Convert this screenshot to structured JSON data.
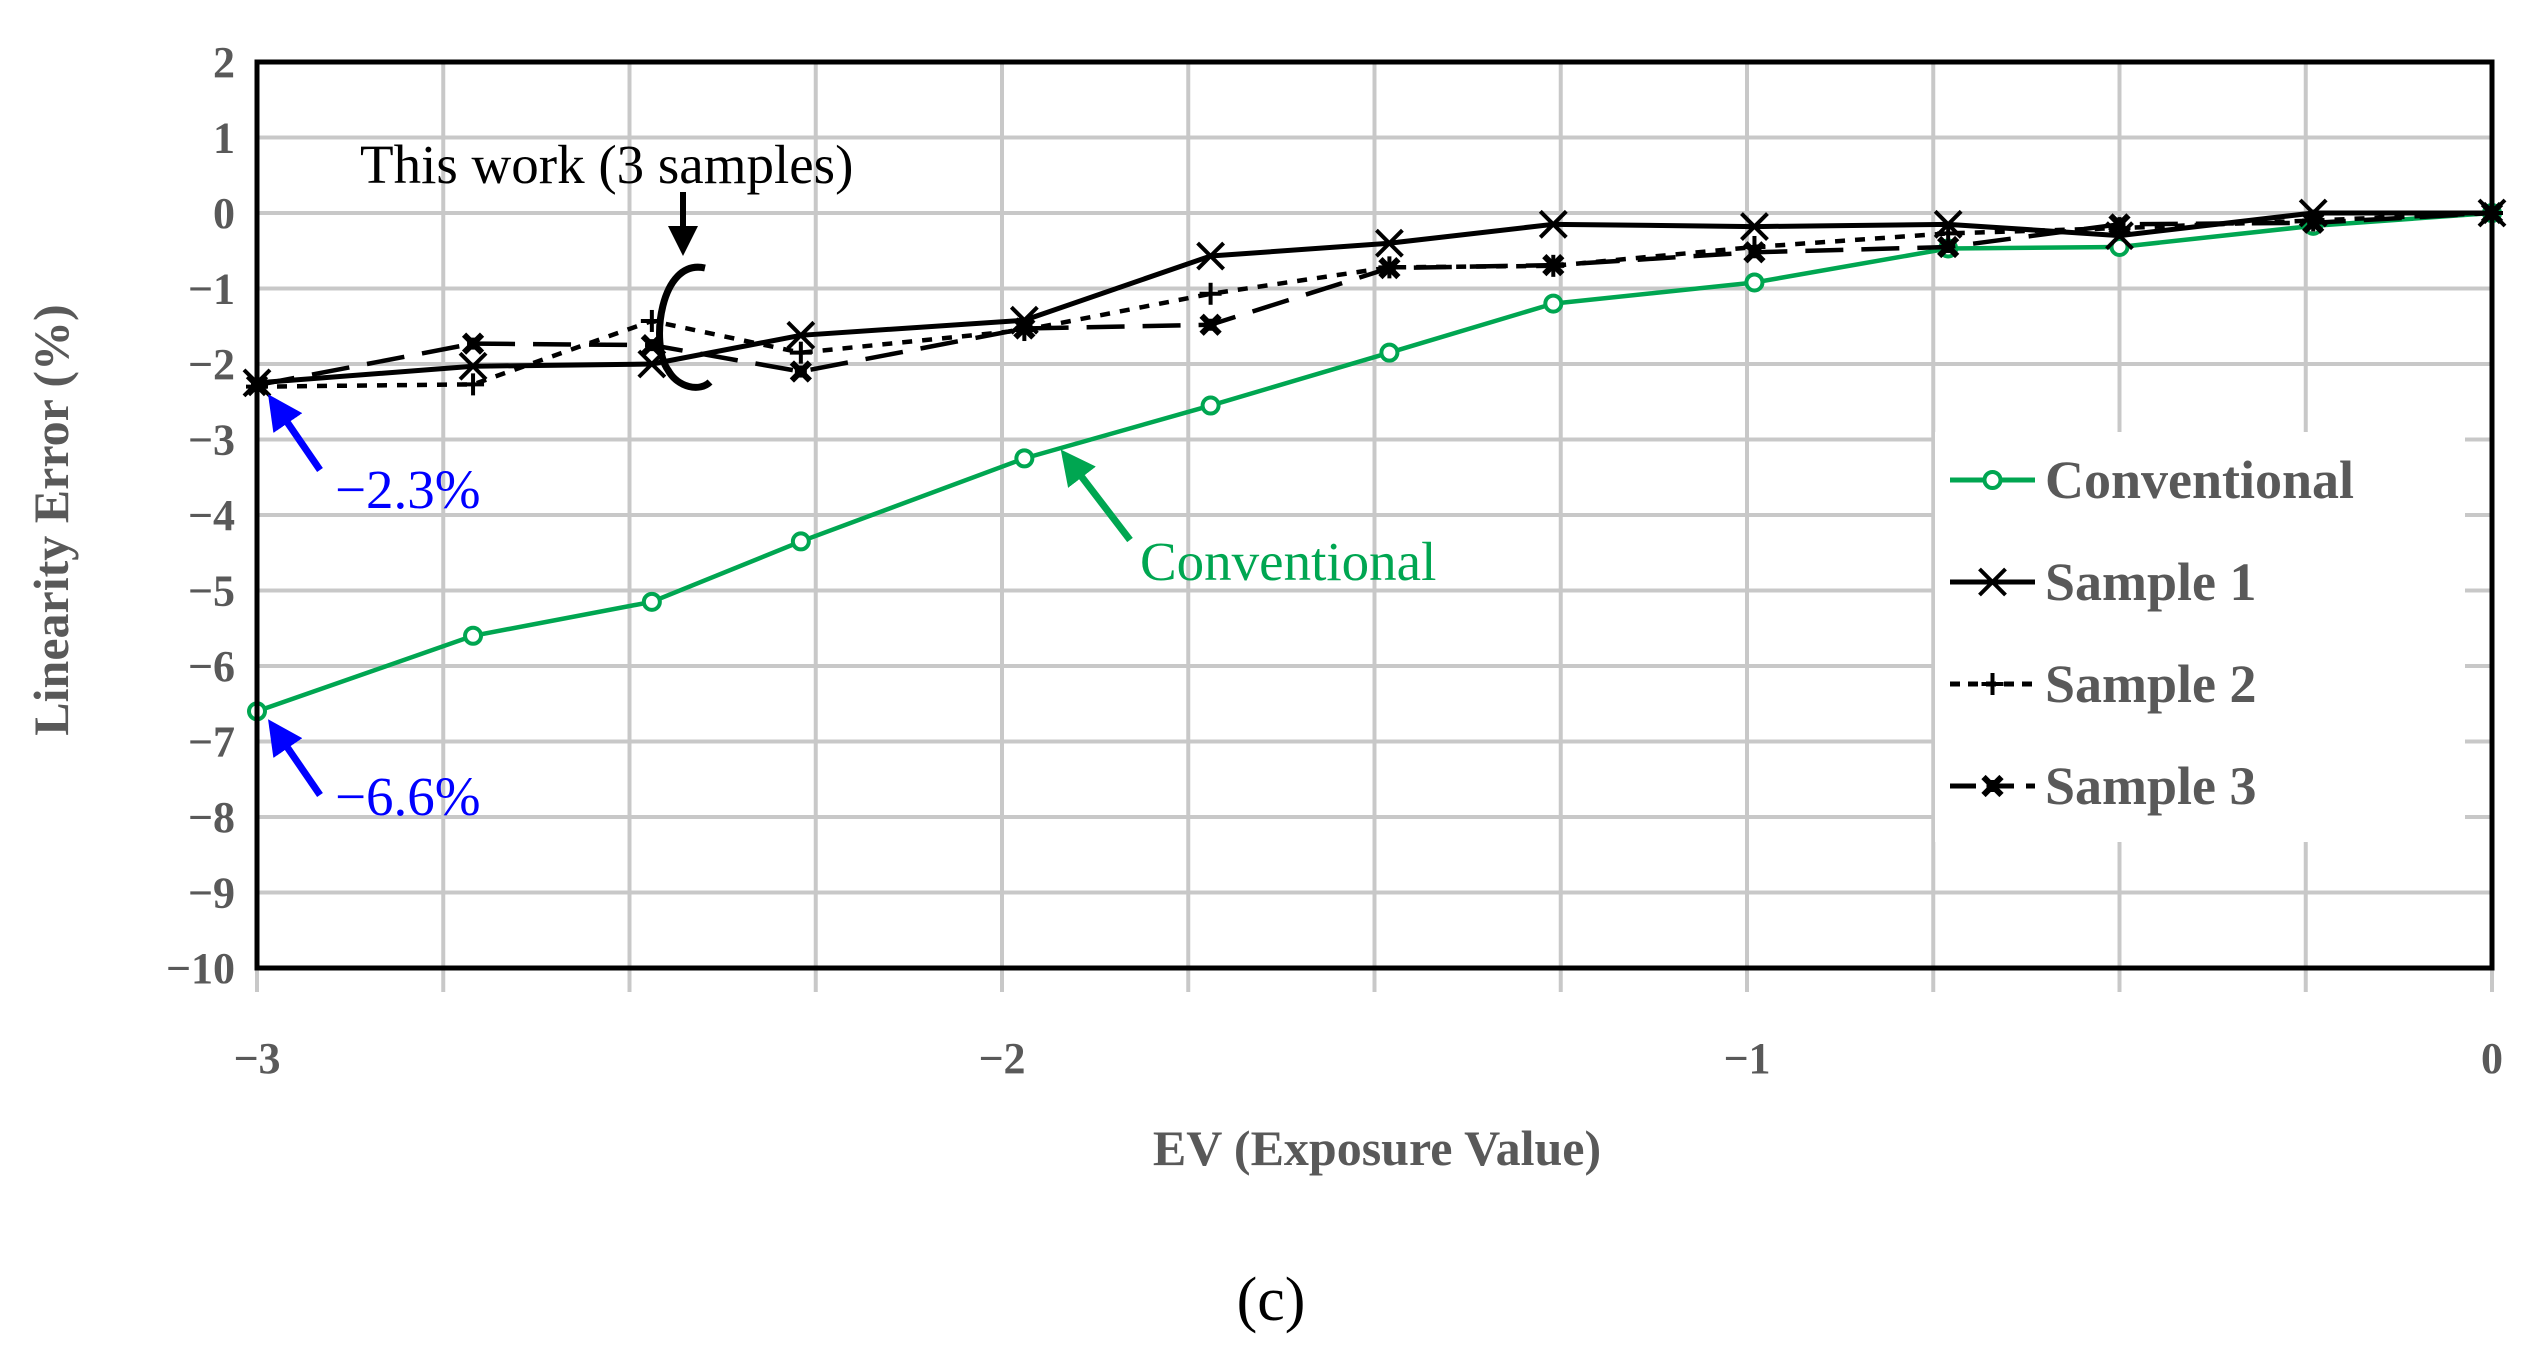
{
  "colors": {
    "conventional": "#00a651",
    "sample": "#000000",
    "annotation_blue": "#0000ff",
    "grid": "#c8c8c8",
    "tick_text": "#595959"
  },
  "chart_data": {
    "type": "line",
    "title": "",
    "panel_label": "(c)",
    "xlabel": "EV (Exposure Value)",
    "ylabel": "Linearity Error (%)",
    "xlim": [
      -3,
      0
    ],
    "ylim": [
      -10,
      2
    ],
    "x_grid_step": 0.25,
    "y_grid_step": 1,
    "x_ticks": [
      {
        "value": -3,
        "label": "−3"
      },
      {
        "value": -2,
        "label": "−2"
      },
      {
        "value": -1,
        "label": "−1"
      },
      {
        "value": 0,
        "label": "0"
      }
    ],
    "y_ticks": [
      {
        "value": 2,
        "label": "2"
      },
      {
        "value": 1,
        "label": "1"
      },
      {
        "value": 0,
        "label": "0"
      },
      {
        "value": -1,
        "label": "−1"
      },
      {
        "value": -2,
        "label": "−2"
      },
      {
        "value": -3,
        "label": "−3"
      },
      {
        "value": -4,
        "label": "−4"
      },
      {
        "value": -5,
        "label": "−5"
      },
      {
        "value": -6,
        "label": "−6"
      },
      {
        "value": -7,
        "label": "−7"
      },
      {
        "value": -8,
        "label": "−8"
      },
      {
        "value": -9,
        "label": "−9"
      },
      {
        "value": -10,
        "label": "−10"
      }
    ],
    "series": [
      {
        "name": "Conventional",
        "color": "#00a651",
        "dash": "solid",
        "marker": "circle",
        "x": [
          -3,
          -2.71,
          -2.47,
          -2.27,
          -1.97,
          -1.72,
          -1.48,
          -1.26,
          -0.99,
          -0.73,
          -0.5,
          -0.24,
          0
        ],
        "y": [
          -6.6,
          -5.6,
          -5.15,
          -4.35,
          -3.25,
          -2.55,
          -1.85,
          -1.2,
          -0.92,
          -0.47,
          -0.45,
          -0.17,
          0
        ]
      },
      {
        "name": "Sample 1",
        "color": "#000000",
        "dash": "solid",
        "marker": "x",
        "x": [
          -3,
          -2.71,
          -2.47,
          -2.27,
          -1.97,
          -1.72,
          -1.48,
          -1.26,
          -0.99,
          -0.73,
          -0.5,
          -0.24,
          0
        ],
        "y": [
          -2.25,
          -2.03,
          -2.0,
          -1.62,
          -1.42,
          -0.57,
          -0.4,
          -0.15,
          -0.18,
          -0.15,
          -0.3,
          0.0,
          0
        ]
      },
      {
        "name": "Sample 2",
        "color": "#000000",
        "dash": "short",
        "marker": "plus",
        "x": [
          -3,
          -2.71,
          -2.47,
          -2.27,
          -1.97,
          -1.72,
          -1.48,
          -1.26,
          -0.99,
          -0.73,
          -0.5,
          -0.24,
          0
        ],
        "y": [
          -2.3,
          -2.27,
          -1.43,
          -1.85,
          -1.55,
          -1.07,
          -0.72,
          -0.7,
          -0.45,
          -0.27,
          -0.2,
          -0.1,
          0
        ]
      },
      {
        "name": "Sample 3",
        "color": "#000000",
        "dash": "long",
        "marker": "star",
        "x": [
          -3,
          -2.71,
          -2.47,
          -2.27,
          -1.97,
          -1.72,
          -1.48,
          -1.26,
          -0.99,
          -0.73,
          -0.5,
          -0.24,
          0
        ],
        "y": [
          -2.28,
          -1.73,
          -1.75,
          -2.1,
          -1.53,
          -1.48,
          -0.73,
          -0.69,
          -0.52,
          -0.45,
          -0.15,
          -0.13,
          0
        ]
      }
    ],
    "legend": {
      "position": "right",
      "entries": [
        "Conventional",
        "Sample 1",
        "Sample 2",
        "Sample 3"
      ]
    },
    "annotations": [
      {
        "text": "This work (3 samples)",
        "color": "#000000",
        "points_to": {
          "x": -2.42,
          "y": -1.9
        }
      },
      {
        "text": "−2.3%",
        "color": "#0000ff",
        "points_to": {
          "x": -3,
          "y": -2.3
        }
      },
      {
        "text": "−6.6%",
        "color": "#0000ff",
        "points_to": {
          "x": -3,
          "y": -6.6
        }
      },
      {
        "text": "Conventional",
        "color": "#00a651",
        "points_to": {
          "x": -1.93,
          "y": -3.2
        }
      }
    ]
  }
}
